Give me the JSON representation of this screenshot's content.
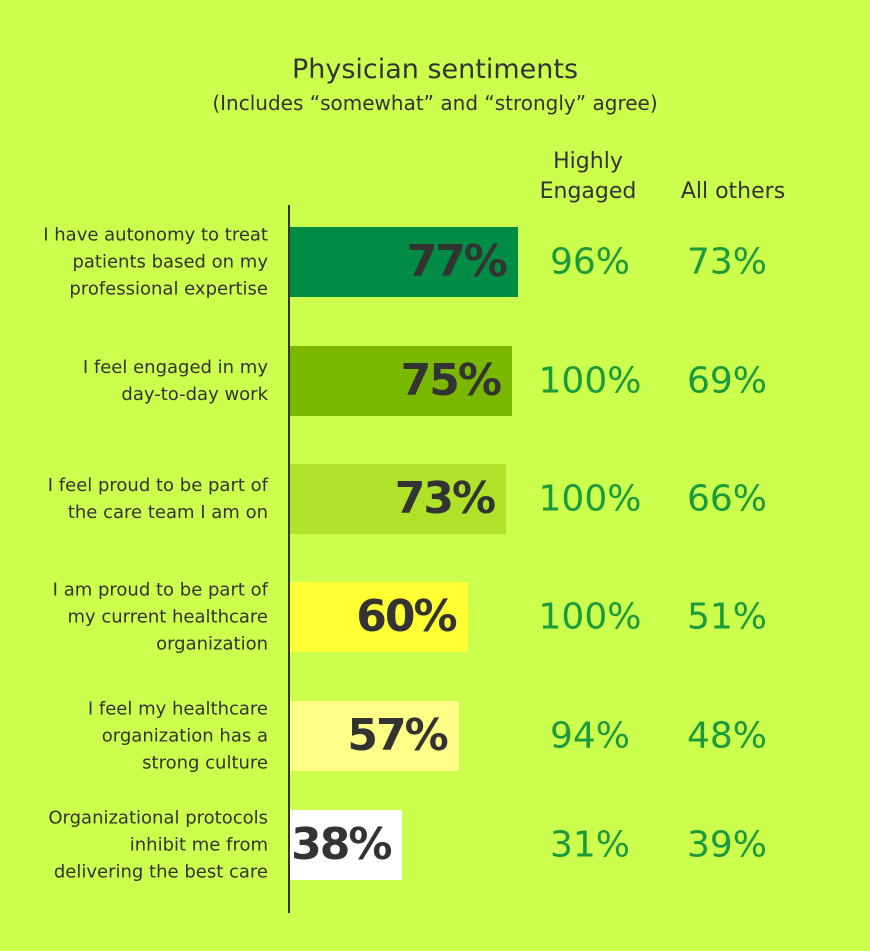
{
  "chart_data": {
    "type": "bar",
    "title": "Physician sentiments",
    "subtitle": "(Includes “somewhat” and “strongly” agree)",
    "categories": [
      "I have autonomy to treat patients based on my professional expertise",
      "I feel engaged in my day-to-day work",
      "I feel proud to be part of the care team I am on",
      "I am proud to be part of my current healthcare organization",
      "I feel my healthcare organization has a strong culture",
      "Organizational protocols inhibit me from delivering the best care"
    ],
    "values": [
      77,
      75,
      73,
      60,
      57,
      38
    ],
    "value_labels": [
      "77%",
      "75%",
      "73%",
      "60%",
      "57%",
      "38%"
    ],
    "colors": [
      "#008c45",
      "#7ab800",
      "#b0e22a",
      "#ffff33",
      "#ffff88",
      "#ffffff"
    ],
    "columns": [
      {
        "name": "Highly Engaged",
        "values": [
          96,
          100,
          100,
          100,
          94,
          31
        ],
        "value_labels": [
          "96%",
          "100%",
          "100%",
          "100%",
          "94%",
          "31%"
        ]
      },
      {
        "name": "All others",
        "values": [
          73,
          69,
          66,
          51,
          48,
          39
        ],
        "value_labels": [
          "73%",
          "69%",
          "66%",
          "51%",
          "48%",
          "39%"
        ]
      }
    ]
  }
}
